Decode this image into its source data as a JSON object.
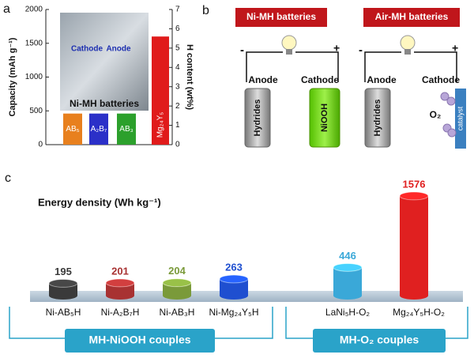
{
  "panel_labels": [
    "a",
    "b",
    "c"
  ],
  "chart_data": [
    {
      "type": "bar",
      "y_label": "Capacity (mAh g⁻¹)",
      "y2_label": "H content (wt%)",
      "categories": [
        "AB₅",
        "A₂B₇",
        "AB₃",
        "Mg₂₄Y₅"
      ],
      "values": [
        460,
        460,
        460,
        1600
      ],
      "colors": [
        "#e8801e",
        "#2b30c8",
        "#2ca02c",
        "#e01b1b"
      ],
      "ylim": [
        0,
        2000
      ],
      "yticks": [
        0,
        500,
        1000,
        1500,
        2000
      ],
      "y2lim": [
        0,
        7
      ],
      "y2ticks": [
        0,
        1,
        2,
        3,
        4,
        5,
        6,
        7
      ],
      "inset": {
        "labels": [
          "Cathode",
          "Anode"
        ],
        "caption": "Ni-MH batteries"
      }
    },
    {
      "type": "cylinder",
      "title": "Energy density (Wh kg⁻¹)",
      "categories": [
        "Ni-AB₅H",
        "Ni-A₂B₇H",
        "Ni-AB₃H",
        "Ni-Mg₂₄Y₅H",
        "LaNi₅H-O₂",
        "Mg₂₄Y₅H-O₂"
      ],
      "values": [
        195,
        201,
        204,
        263,
        446,
        1576
      ],
      "colors": [
        "#3a3a3a",
        "#a83232",
        "#7a9a3a",
        "#1f4fd0",
        "#3aa8d8",
        "#e02020"
      ],
      "groups": [
        "MH-NiOOH couples",
        "MH-O₂ couples"
      ]
    }
  ],
  "diagram": {
    "titles": [
      "Ni-MH batteries",
      "Air-MH batteries"
    ],
    "terminals": [
      "-",
      "+",
      "-",
      "+"
    ],
    "electrode_labels": [
      "Anode",
      "Cathode",
      "Anode",
      "Cathode"
    ],
    "materials": [
      "Hydrides",
      "NiOOH",
      "Hydrides",
      "catalyst"
    ],
    "gas": "O₂"
  }
}
